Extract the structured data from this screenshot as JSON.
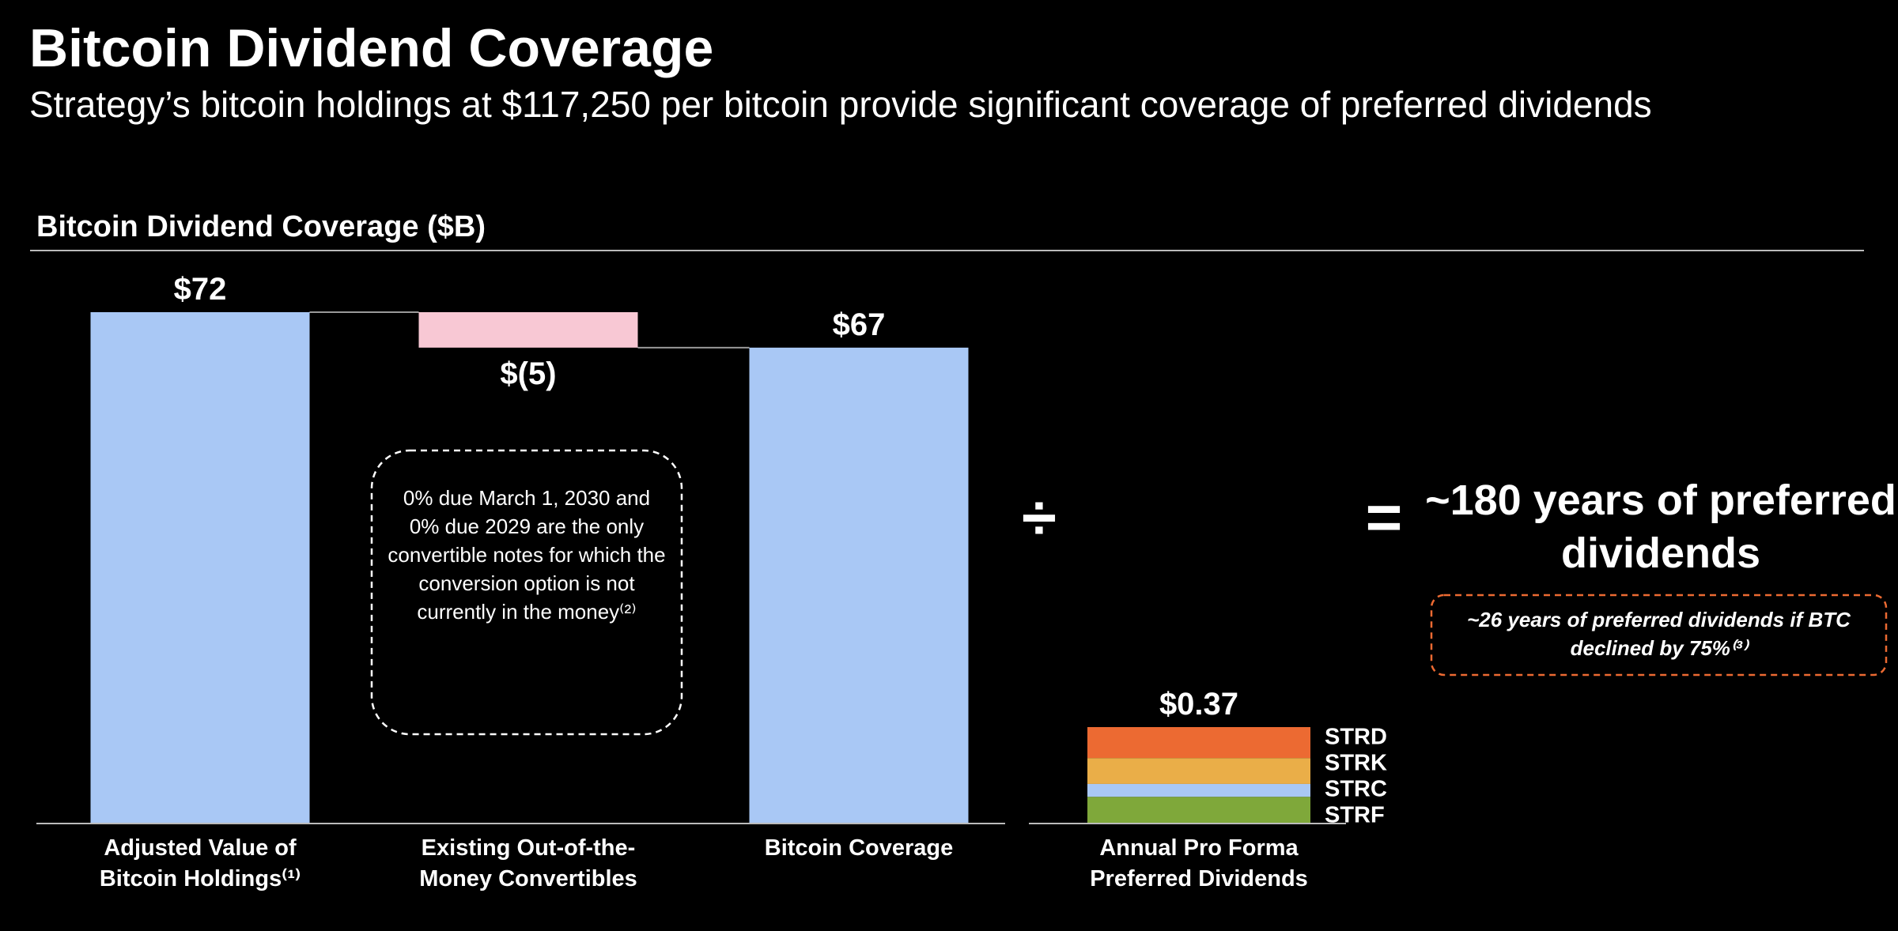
{
  "header": {
    "title": "Bitcoin Dividend Coverage",
    "subtitle": "Strategy’s bitcoin holdings at $117,250 per bitcoin provide significant coverage of preferred dividends"
  },
  "chart_data": [
    {
      "type": "waterfall",
      "title": "Bitcoin Dividend Coverage ($B)",
      "categories": [
        "Adjusted Value of Bitcoin Holdings⁽¹⁾",
        "Existing Out-of-the-Money Convertibles",
        "Bitcoin Coverage"
      ],
      "values": [
        72,
        -5,
        67
      ],
      "measure": [
        "absolute",
        "relative",
        "total"
      ],
      "value_labels": [
        "$72",
        "$(5)",
        "$67"
      ],
      "color": "#a9c8f5",
      "decrease_color": "#f8c8d4"
    },
    {
      "type": "stacked_bar",
      "categories": [
        "Annual Pro Forma Preferred Dividends"
      ],
      "series": [
        {
          "name": "STRD",
          "color": "#ec6a32",
          "values": [
            0.12
          ]
        },
        {
          "name": "STRK",
          "color": "#eaae48",
          "values": [
            0.1
          ]
        },
        {
          "name": "STRC",
          "color": "#a9c8f5",
          "values": [
            0.05
          ]
        },
        {
          "name": "STRF",
          "color": "#7fa83a",
          "values": [
            0.1
          ]
        }
      ],
      "total_labels": [
        "$0.37"
      ]
    }
  ],
  "annotations": {
    "callout": "0% due March 1, 2030 and 0% due 2029 are the only convertible notes for which the conversion option is not currently in the money⁽²⁾",
    "divide": "÷",
    "equals": "=",
    "result": "~180 years of preferred dividends",
    "stress_case": "~26 years of preferred dividends if BTC declined by 75%⁽³⁾"
  }
}
